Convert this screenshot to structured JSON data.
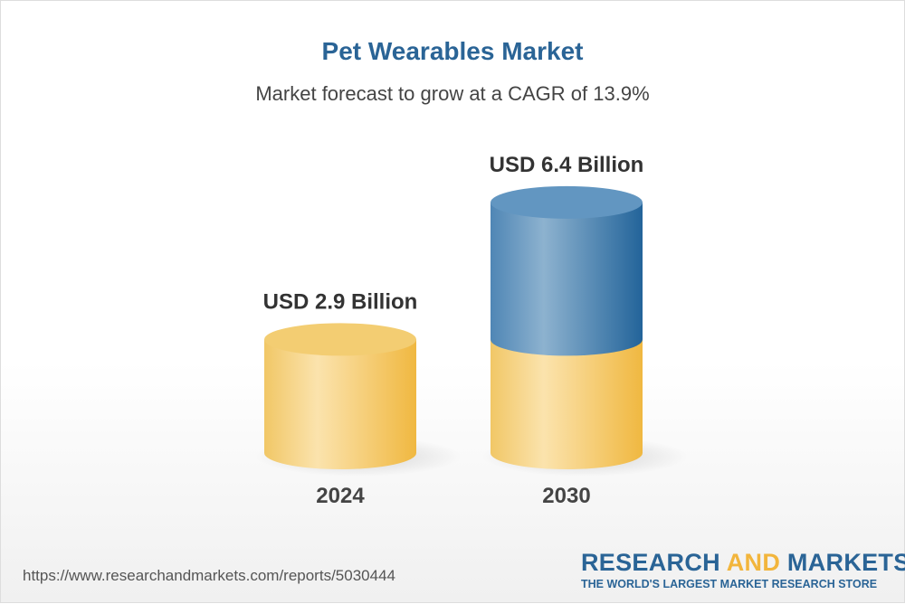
{
  "header": {
    "title": "Pet Wearables Market",
    "subtitle": "Market forecast to grow at a CAGR of 13.9%"
  },
  "chart_data": {
    "type": "bar",
    "style": "3d-cylinder",
    "categories": [
      "2024",
      "2030"
    ],
    "values": [
      2.9,
      6.4
    ],
    "data_labels": [
      "USD 2.9 Billion",
      "USD 6.4 Billion"
    ],
    "unit": "USD Billion",
    "colors": {
      "base": "#f2c25a",
      "growth": "#2e6da0"
    },
    "grid": false
  },
  "footer": {
    "url": "https://www.researchandmarkets.com/reports/5030444",
    "logo_part1": "RESEARCH ",
    "logo_part2": "AND",
    "logo_part3": " MARKETS",
    "tagline": "THE WORLD'S LARGEST MARKET RESEARCH STORE"
  }
}
